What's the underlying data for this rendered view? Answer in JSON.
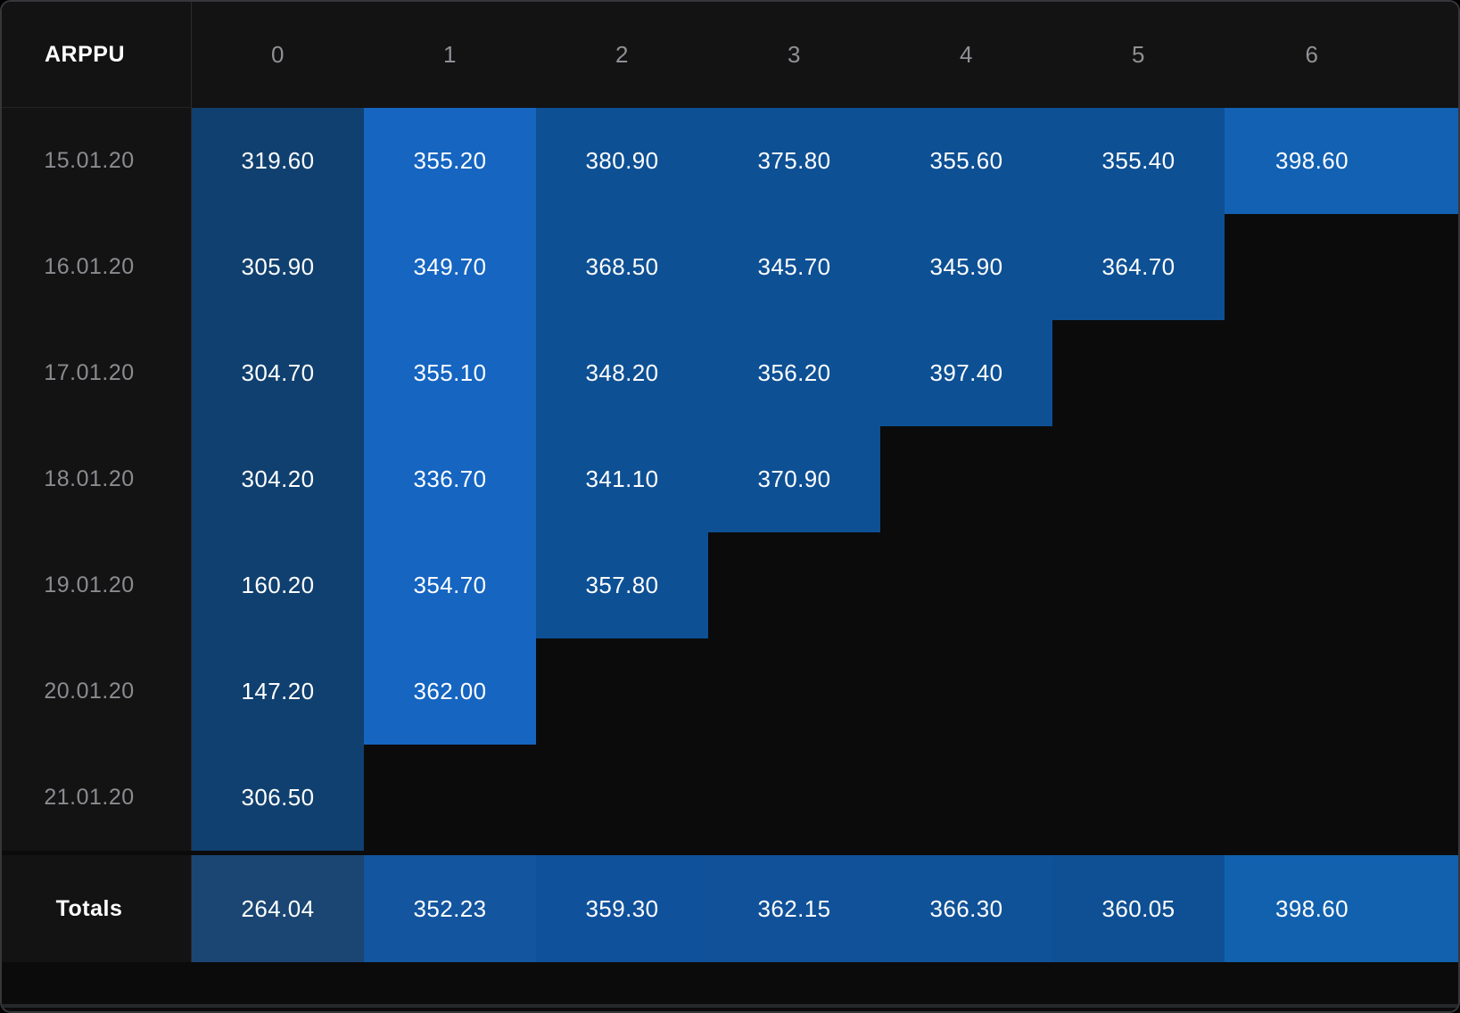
{
  "table": {
    "corner_label": "ARPPU",
    "columns": [
      "0",
      "1",
      "2",
      "3",
      "4",
      "5",
      "6"
    ],
    "rows": [
      {
        "label": "15.01.20",
        "values": [
          "319.60",
          "355.20",
          "380.90",
          "375.80",
          "355.60",
          "355.40",
          "398.60"
        ]
      },
      {
        "label": "16.01.20",
        "values": [
          "305.90",
          "349.70",
          "368.50",
          "345.70",
          "345.90",
          "364.70"
        ]
      },
      {
        "label": "17.01.20",
        "values": [
          "304.70",
          "355.10",
          "348.20",
          "356.20",
          "397.40"
        ]
      },
      {
        "label": "18.01.20",
        "values": [
          "304.20",
          "336.70",
          "341.10",
          "370.90"
        ]
      },
      {
        "label": "19.01.20",
        "values": [
          "160.20",
          "354.70",
          "357.80"
        ]
      },
      {
        "label": "20.01.20",
        "values": [
          "147.20",
          "362.00"
        ]
      },
      {
        "label": "21.01.20",
        "values": [
          "306.50"
        ]
      }
    ],
    "totals": {
      "label": "Totals",
      "values": [
        "264.04",
        "352.23",
        "359.30",
        "362.15",
        "366.30",
        "360.05",
        "398.60"
      ]
    }
  },
  "colors": {
    "page_bg": "#0b0b0b",
    "panel_bg": "#131313",
    "grid_line": "#2a2a2a",
    "value_text": "#ffffff",
    "label_text": "#8b8b90",
    "columns": [
      "#10406f",
      "#1565c1",
      "#0e5094",
      "#0e5094",
      "#0e5094",
      "#0e5094",
      "#1261b3"
    ],
    "totals": [
      "#1b4673",
      "#13559e",
      "#10519b",
      "#105199",
      "#105297",
      "#0f5094",
      "#1261ae"
    ]
  },
  "chart_data": {
    "type": "heatmap",
    "title": "ARPPU",
    "columns": [
      0,
      1,
      2,
      3,
      4,
      5,
      6
    ],
    "row_labels": [
      "15.01.20",
      "16.01.20",
      "17.01.20",
      "18.01.20",
      "19.01.20",
      "20.01.20",
      "21.01.20"
    ],
    "values": [
      [
        319.6,
        355.2,
        380.9,
        375.8,
        355.6,
        355.4,
        398.6
      ],
      [
        305.9,
        349.7,
        368.5,
        345.7,
        345.9,
        364.7
      ],
      [
        304.7,
        355.1,
        348.2,
        356.2,
        397.4
      ],
      [
        304.2,
        336.7,
        341.1,
        370.9
      ],
      [
        160.2,
        354.7,
        357.8
      ],
      [
        147.2,
        362.0
      ],
      [
        306.5
      ]
    ],
    "totals_label": "Totals",
    "totals": [
      264.04,
      352.23,
      359.3,
      362.15,
      366.3,
      360.05,
      398.6
    ],
    "legend_position": "none",
    "grid": false
  }
}
